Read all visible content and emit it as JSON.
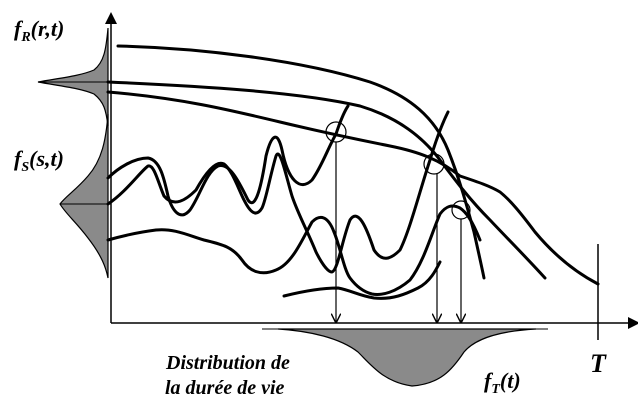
{
  "labels": {
    "fr_main": "f",
    "fr_sub": "R",
    "fr_args": "(r,t)",
    "fs_main": "f",
    "fs_sub": "S",
    "fs_args": "(s,t)",
    "ft_main": "f",
    "ft_sub": "T",
    "ft_args": "(t)",
    "T": "T",
    "dist_line1": "Distribution de",
    "dist_line2": "la durée de vie"
  },
  "colors": {
    "distribution_fill": "#8a8a8a",
    "line": "#000000"
  }
}
